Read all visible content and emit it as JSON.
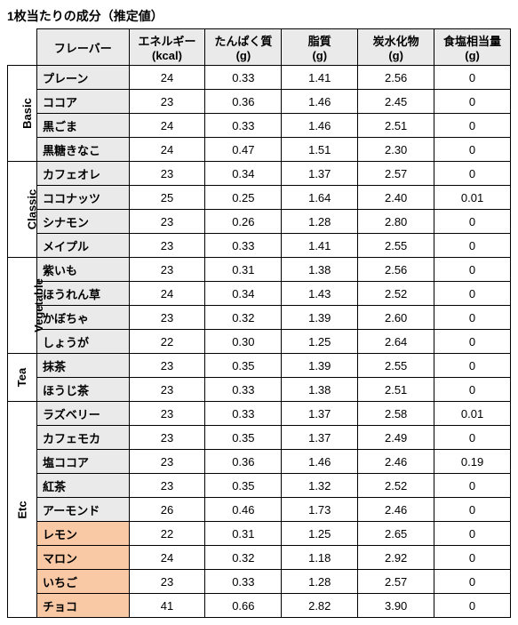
{
  "title": "1枚当たりの成分（推定値）",
  "columns": [
    "フレーバー",
    "エネルギー\n(kcal)",
    "たんぱく質\n(g)",
    "脂質\n(g)",
    "炭水化物\n(g)",
    "食塩相当量\n(g)"
  ],
  "categories": [
    {
      "name": "Basic",
      "rows": [
        {
          "flavor": "プレーン",
          "vals": [
            "24",
            "0.33",
            "1.41",
            "2.56",
            "0"
          ]
        },
        {
          "flavor": "ココア",
          "vals": [
            "23",
            "0.36",
            "1.46",
            "2.45",
            "0"
          ]
        },
        {
          "flavor": "黒ごま",
          "vals": [
            "24",
            "0.33",
            "1.46",
            "2.51",
            "0"
          ]
        },
        {
          "flavor": "黒糖きなこ",
          "vals": [
            "24",
            "0.47",
            "1.51",
            "2.30",
            "0"
          ]
        }
      ]
    },
    {
      "name": "Classic",
      "rows": [
        {
          "flavor": "カフェオレ",
          "vals": [
            "23",
            "0.34",
            "1.37",
            "2.57",
            "0"
          ]
        },
        {
          "flavor": "ココナッツ",
          "vals": [
            "25",
            "0.25",
            "1.64",
            "2.40",
            "0.01"
          ]
        },
        {
          "flavor": "シナモン",
          "vals": [
            "23",
            "0.26",
            "1.28",
            "2.80",
            "0"
          ]
        },
        {
          "flavor": "メイプル",
          "vals": [
            "23",
            "0.33",
            "1.41",
            "2.55",
            "0"
          ]
        }
      ]
    },
    {
      "name": "Vegetable",
      "rows": [
        {
          "flavor": "紫いも",
          "vals": [
            "23",
            "0.31",
            "1.38",
            "2.56",
            "0"
          ]
        },
        {
          "flavor": "ほうれん草",
          "vals": [
            "24",
            "0.34",
            "1.43",
            "2.52",
            "0"
          ]
        },
        {
          "flavor": "かぼちゃ",
          "vals": [
            "23",
            "0.32",
            "1.39",
            "2.60",
            "0"
          ]
        },
        {
          "flavor": "しょうが",
          "vals": [
            "22",
            "0.30",
            "1.25",
            "2.64",
            "0"
          ]
        }
      ]
    },
    {
      "name": "Tea",
      "rows": [
        {
          "flavor": "抹茶",
          "vals": [
            "23",
            "0.35",
            "1.39",
            "2.55",
            "0"
          ]
        },
        {
          "flavor": "ほうじ茶",
          "vals": [
            "23",
            "0.33",
            "1.38",
            "2.51",
            "0"
          ]
        }
      ]
    },
    {
      "name": "Etc",
      "rows": [
        {
          "flavor": "ラズベリー",
          "vals": [
            "23",
            "0.33",
            "1.37",
            "2.58",
            "0.01"
          ]
        },
        {
          "flavor": "カフェモカ",
          "vals": [
            "23",
            "0.35",
            "1.37",
            "2.49",
            "0"
          ]
        },
        {
          "flavor": "塩ココア",
          "vals": [
            "23",
            "0.36",
            "1.46",
            "2.46",
            "0.19"
          ]
        },
        {
          "flavor": "紅茶",
          "vals": [
            "23",
            "0.35",
            "1.32",
            "2.52",
            "0"
          ]
        },
        {
          "flavor": "アーモンド",
          "vals": [
            "26",
            "0.46",
            "1.73",
            "2.46",
            "0"
          ]
        },
        {
          "flavor": "レモン",
          "vals": [
            "22",
            "0.31",
            "1.25",
            "2.65",
            "0"
          ],
          "hl": true
        },
        {
          "flavor": "マロン",
          "vals": [
            "24",
            "0.32",
            "1.18",
            "2.92",
            "0"
          ],
          "hl": true
        },
        {
          "flavor": "いちご",
          "vals": [
            "23",
            "0.33",
            "1.28",
            "2.57",
            "0"
          ],
          "hl": true
        },
        {
          "flavor": "チョコ",
          "vals": [
            "41",
            "0.66",
            "2.82",
            "3.90",
            "0"
          ],
          "hl": true
        }
      ]
    }
  ]
}
